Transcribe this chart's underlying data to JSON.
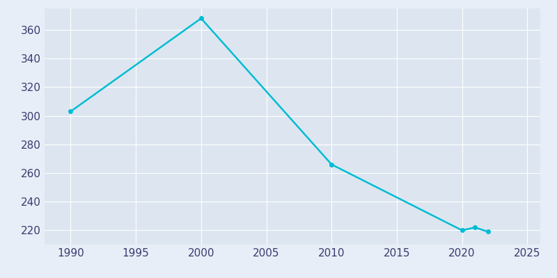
{
  "years": [
    1990,
    2000,
    2010,
    2020,
    2021,
    2022
  ],
  "population": [
    303,
    368,
    266,
    220,
    222,
    219
  ],
  "line_color": "#00bcd4",
  "bg_color": "#e8eef7",
  "plot_bg_color": "#dde6f0",
  "grid_color": "#ffffff",
  "tick_color": "#3a3a6e",
  "xlim": [
    1988,
    2026
  ],
  "ylim": [
    210,
    375
  ],
  "xticks": [
    1990,
    1995,
    2000,
    2005,
    2010,
    2015,
    2020,
    2025
  ],
  "yticks": [
    220,
    240,
    260,
    280,
    300,
    320,
    340,
    360
  ],
  "line_width": 1.8,
  "marker_size": 4,
  "tick_labelsize": 11
}
